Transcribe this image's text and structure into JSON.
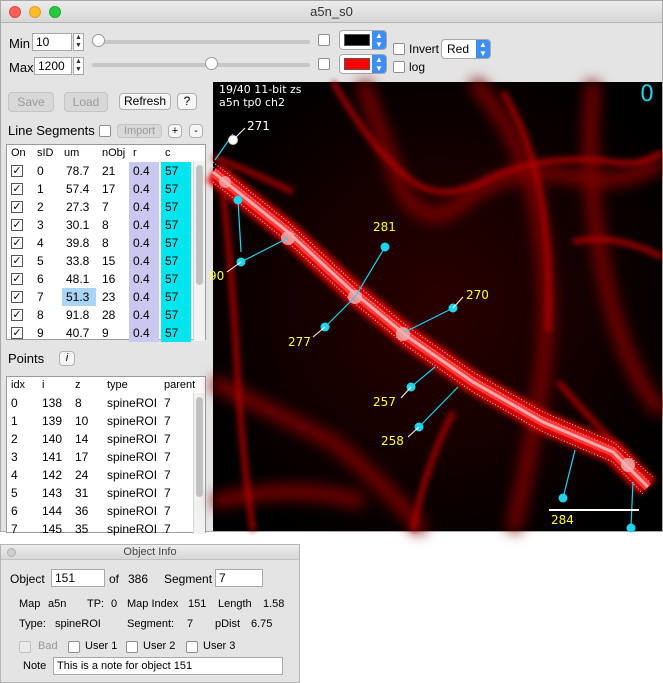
{
  "window": {
    "title": "a5n_s0"
  },
  "controls": {
    "min": {
      "label": "Min",
      "value": "10",
      "slider_fraction": 0.0
    },
    "max": {
      "label": "Max",
      "value": "1200",
      "slider_fraction": 0.55
    },
    "min_color": "#000000",
    "max_color": "#ff0000",
    "invert_label": "Invert",
    "log_label": "log",
    "channel_color": "Red"
  },
  "toolbar": {
    "save_label": "Save",
    "load_label": "Load",
    "refresh_label": "Refresh",
    "help_label": "?"
  },
  "segments": {
    "title": "Line Segments",
    "import_label": "Import",
    "add_label": "+",
    "remove_label": "-",
    "columns": [
      "On",
      "sID",
      "um",
      "nObj",
      "r",
      "c"
    ],
    "rows": [
      {
        "sid": "0",
        "um": "78.7",
        "nobj": "21",
        "r": "0.4",
        "c": "57"
      },
      {
        "sid": "1",
        "um": "57.4",
        "nobj": "17",
        "r": "0.4",
        "c": "57"
      },
      {
        "sid": "2",
        "um": "27.3",
        "nobj": "7",
        "r": "0.4",
        "c": "57"
      },
      {
        "sid": "3",
        "um": "30.1",
        "nobj": "8",
        "r": "0.4",
        "c": "57"
      },
      {
        "sid": "4",
        "um": "39.8",
        "nobj": "8",
        "r": "0.4",
        "c": "57"
      },
      {
        "sid": "5",
        "um": "33.8",
        "nobj": "15",
        "r": "0.4",
        "c": "57"
      },
      {
        "sid": "6",
        "um": "48.1",
        "nobj": "16",
        "r": "0.4",
        "c": "57"
      },
      {
        "sid": "7",
        "um": "51.3",
        "nobj": "23",
        "r": "0.4",
        "c": "57"
      },
      {
        "sid": "8",
        "um": "91.8",
        "nobj": "28",
        "r": "0.4",
        "c": "57"
      },
      {
        "sid": "9",
        "um": "40.7",
        "nobj": "9",
        "r": "0.4",
        "c": "57"
      }
    ],
    "selected_row": 7,
    "r_color": "#c8c8f0",
    "c_color": "#00e5ee"
  },
  "points": {
    "title": "Points",
    "info_label": "i",
    "columns": [
      "idx",
      "i",
      "z",
      "type",
      "parent"
    ],
    "rows": [
      {
        "idx": "0",
        "i": "138",
        "z": "8",
        "type": "spineROI",
        "parent": "7"
      },
      {
        "idx": "1",
        "i": "139",
        "z": "10",
        "type": "spineROI",
        "parent": "7"
      },
      {
        "idx": "2",
        "i": "140",
        "z": "14",
        "type": "spineROI",
        "parent": "7"
      },
      {
        "idx": "3",
        "i": "141",
        "z": "17",
        "type": "spineROI",
        "parent": "7"
      },
      {
        "idx": "4",
        "i": "142",
        "z": "24",
        "type": "spineROI",
        "parent": "7"
      },
      {
        "idx": "5",
        "i": "143",
        "z": "31",
        "type": "spineROI",
        "parent": "7"
      },
      {
        "idx": "6",
        "i": "144",
        "z": "36",
        "type": "spineROI",
        "parent": "7"
      },
      {
        "idx": "7",
        "i": "145",
        "z": "35",
        "type": "spineROI",
        "parent": "7"
      }
    ]
  },
  "viewer": {
    "info_line1": "19/40 11-bit zs",
    "info_line2": "a5n tp0 ch2",
    "counter": "0",
    "spine_labels": [
      "271",
      "90",
      "281",
      "270",
      "277",
      "257",
      "258",
      "284"
    ],
    "text_color": "#ffff33",
    "marker_color": "#22d3ee"
  },
  "object_info": {
    "title": "Object Info",
    "object_label": "Object",
    "object_value": "151",
    "of_label": "of",
    "total": "386",
    "segment_label": "Segment",
    "segment_value": "7",
    "map_label": "Map",
    "map_value": "a5n",
    "tp_label": "TP:",
    "tp_value": "0",
    "mapindex_label": "Map Index",
    "mapindex_value": "151",
    "length_label": "Length",
    "length_value": "1.58",
    "type_label": "Type:",
    "type_value": "spineROI",
    "segment2_label": "Segment:",
    "segment2_value": "7",
    "pdist_label": "pDist",
    "pdist_value": "6.75",
    "bad_label": "Bad",
    "user1_label": "User 1",
    "user2_label": "User 2",
    "user3_label": "User 3",
    "note_label": "Note",
    "note_value": "This is a note for object 151"
  }
}
